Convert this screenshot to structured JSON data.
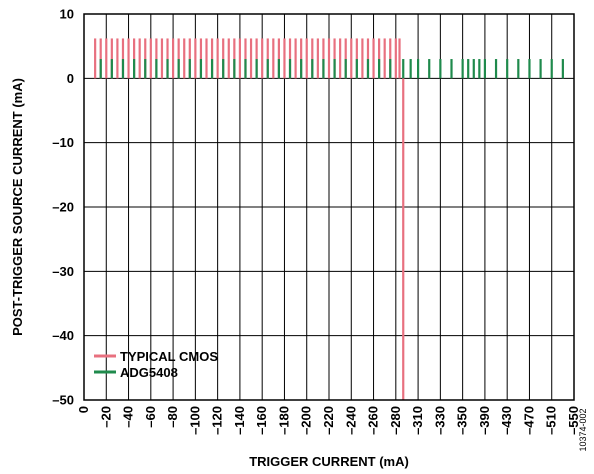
{
  "chart_data": {
    "type": "bar",
    "xlabel": "TRIGGER CURRENT (mA)",
    "ylabel": "POST-TRIGGER SOURCE CURRENT (mA)",
    "ylim": [
      -50,
      10
    ],
    "yticks": [
      10,
      0,
      -10,
      -20,
      -30,
      -40,
      -50
    ],
    "ytick_labels": [
      "10",
      "0",
      "–10",
      "–20",
      "–30",
      "–40",
      "–50"
    ],
    "xtick_labels": [
      "0",
      "–20",
      "–40",
      "–60",
      "–80",
      "–100",
      "–120",
      "–140",
      "–160",
      "–180",
      "–200",
      "–220",
      "–240",
      "–260",
      "–280",
      "–310",
      "–330",
      "–350",
      "–390",
      "–430",
      "–470",
      "–510",
      "–550"
    ],
    "grid": true,
    "legend_position": "bottom-left",
    "figure_id": "10374-002",
    "series": [
      {
        "name": "TYPICAL CMOS",
        "color": "#e8707f",
        "x": [
          -10,
          -15,
          -20,
          -25,
          -30,
          -35,
          -40,
          -45,
          -50,
          -55,
          -60,
          -65,
          -70,
          -75,
          -80,
          -85,
          -90,
          -95,
          -100,
          -105,
          -110,
          -115,
          -120,
          -125,
          -130,
          -135,
          -140,
          -145,
          -150,
          -155,
          -160,
          -165,
          -170,
          -175,
          -180,
          -185,
          -190,
          -195,
          -200,
          -205,
          -210,
          -215,
          -220,
          -225,
          -230,
          -235,
          -240,
          -245,
          -250,
          -255,
          -260,
          -265,
          -270,
          -275,
          -280,
          -285,
          -290
        ],
        "values": [
          6.2,
          6.2,
          6.2,
          6.2,
          6.2,
          6.2,
          6.2,
          6.2,
          6.2,
          6.2,
          6.2,
          6.2,
          6.2,
          6.2,
          6.2,
          6.2,
          6.2,
          6.2,
          6.2,
          6.2,
          6.2,
          6.2,
          6.2,
          6.2,
          6.2,
          6.2,
          6.2,
          6.2,
          6.2,
          6.2,
          6.2,
          6.2,
          6.2,
          6.2,
          6.2,
          6.2,
          6.2,
          6.2,
          6.2,
          6.2,
          6.2,
          6.2,
          6.2,
          6.2,
          6.2,
          6.2,
          6.2,
          6.2,
          6.2,
          6.2,
          6.2,
          6.2,
          6.2,
          6.2,
          6.2,
          6.2,
          -50
        ]
      },
      {
        "name": "ADG5408",
        "color": "#1f8a4c",
        "x": [
          -15,
          -25,
          -35,
          -45,
          -55,
          -65,
          -75,
          -85,
          -95,
          -105,
          -115,
          -125,
          -135,
          -145,
          -155,
          -165,
          -175,
          -185,
          -195,
          -205,
          -215,
          -225,
          -235,
          -245,
          -255,
          -265,
          -275,
          -290,
          -300,
          -310,
          -320,
          -330,
          -340,
          -350,
          -360,
          -370,
          -380,
          -390,
          -410,
          -430,
          -450,
          -470,
          -490,
          -510,
          -530
        ],
        "values": [
          3,
          3,
          3,
          3,
          3,
          3,
          3,
          3,
          3,
          3,
          3,
          3,
          3,
          3,
          3,
          3,
          3,
          3,
          3,
          3,
          3,
          3,
          3,
          3,
          3,
          3,
          3,
          3,
          3,
          3,
          3,
          3,
          3,
          3,
          3,
          3,
          3,
          3,
          3,
          3,
          3,
          3,
          3,
          3,
          3
        ]
      }
    ]
  }
}
